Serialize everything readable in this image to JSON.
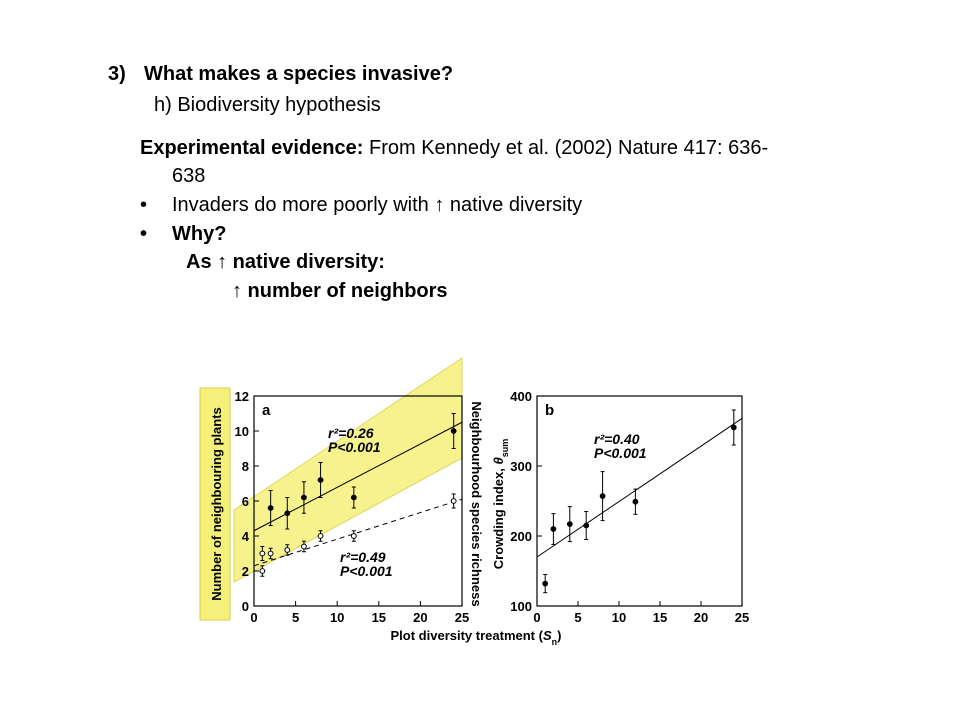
{
  "slide": {
    "title_number": "3)",
    "title_text": "What makes a species invasive?",
    "subtitle": "h) Biodiversity hypothesis",
    "evidence_label": "Experimental evidence:",
    "evidence_text": "From Kennedy et al. (2002) Nature 417: 636-",
    "evidence_text_cont": "638",
    "bullets": [
      {
        "marker": "•",
        "text": "Invaders do more poorly with ↑ native diversity"
      },
      {
        "marker": "•",
        "text": "Why?"
      }
    ],
    "line_as": "As ↑ native diversity:",
    "line_neighbors": "↑ number of neighbors"
  },
  "highlight_color": "#f5f07a",
  "chart_data": [
    {
      "type": "scatter",
      "panel_label": "a",
      "xlabel": "Plot diversity treatment (S_n)",
      "ylabel_left": "Number of neighbouring plants",
      "ylabel_right": "Neighbourhood species richness",
      "xlim": [
        0,
        25
      ],
      "ylim": [
        0,
        12
      ],
      "xticks": [
        "0",
        "5",
        "10",
        "15",
        "20",
        "25"
      ],
      "yticks": [
        "0",
        "2",
        "4",
        "6",
        "8",
        "10",
        "12"
      ],
      "series": [
        {
          "marker": "filled",
          "x": [
            2,
            4,
            6,
            8,
            12,
            24
          ],
          "y": [
            5.6,
            5.3,
            6.2,
            7.2,
            6.2,
            10.0
          ],
          "err": [
            1.0,
            0.9,
            0.9,
            1.0,
            0.6,
            1.0
          ],
          "fit": {
            "x0": 0,
            "y0": 4.3,
            "x1": 25,
            "y1": 10.5,
            "style": "solid"
          },
          "stats": {
            "r2": "r²=0.26",
            "p": "P<0.001"
          }
        },
        {
          "marker": "open",
          "x": [
            1,
            1,
            2,
            4,
            6,
            8,
            12,
            24
          ],
          "y": [
            2.0,
            3.0,
            3.0,
            3.2,
            3.4,
            4.0,
            4.0,
            6.0
          ],
          "err": [
            0.3,
            0.4,
            0.3,
            0.3,
            0.3,
            0.3,
            0.3,
            0.4
          ],
          "fit": {
            "x0": 0,
            "y0": 2.3,
            "x1": 25,
            "y1": 6.1,
            "style": "dashed"
          },
          "stats": {
            "r2": "r²=0.49",
            "p": "P<0.001"
          }
        }
      ]
    },
    {
      "type": "scatter",
      "panel_label": "b",
      "ylabel": "Crowding index, θ_sum",
      "xlim": [
        0,
        25
      ],
      "ylim": [
        100,
        400
      ],
      "xticks": [
        "0",
        "5",
        "10",
        "15",
        "20",
        "25"
      ],
      "yticks": [
        "100",
        "200",
        "300",
        "400"
      ],
      "series": [
        {
          "marker": "filled",
          "x": [
            1,
            2,
            4,
            6,
            8,
            12,
            24
          ],
          "y": [
            132,
            210,
            217,
            215,
            257,
            249,
            355
          ],
          "err": [
            13,
            22,
            25,
            20,
            35,
            18,
            25
          ],
          "fit": {
            "x0": 0,
            "y0": 170,
            "x1": 25,
            "y1": 368,
            "style": "solid"
          },
          "stats": {
            "r2": "r²=0.40",
            "p": "P<0.001"
          }
        }
      ]
    }
  ]
}
